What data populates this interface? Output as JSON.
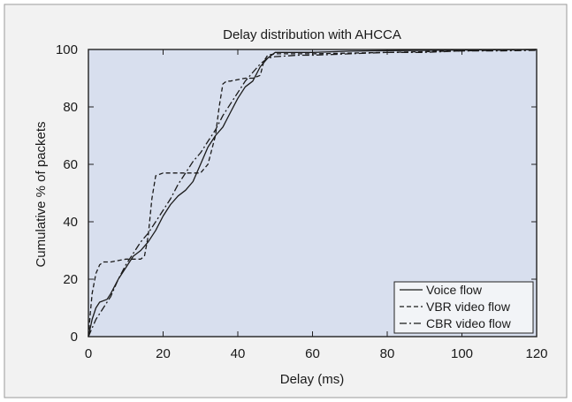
{
  "chart_data": {
    "type": "line",
    "title": "Delay distribution with AHCCA",
    "xlabel": "Delay (ms)",
    "ylabel": "Cumulative % of packets",
    "xlim": [
      0,
      120
    ],
    "ylim": [
      0,
      100
    ],
    "xticks": [
      "0",
      "20",
      "40",
      "60",
      "80",
      "100",
      "120"
    ],
    "yticks": [
      "0",
      "20",
      "40",
      "60",
      "80",
      "100"
    ],
    "grid": false,
    "legend_position": "bottom-right",
    "colors": {
      "panel": "#f2f2f2",
      "plot_area": "#d8dfee",
      "line": "#1a1a1a",
      "frame": "#222222"
    },
    "series": [
      {
        "name": "Voice flow",
        "style": "solid",
        "x": [
          0,
          1,
          2,
          3,
          5,
          6,
          8,
          10,
          12,
          14,
          16,
          18,
          20,
          22,
          24,
          26,
          28,
          30,
          32,
          34,
          36,
          38,
          40,
          42,
          44,
          46,
          48,
          50,
          52,
          56,
          60,
          70,
          80,
          100,
          120
        ],
        "y": [
          0,
          6,
          10,
          12,
          13,
          15,
          20,
          24,
          28,
          30,
          33,
          37,
          42,
          46,
          49,
          51,
          54,
          60,
          66,
          70,
          73,
          78,
          83,
          87,
          89,
          94,
          97,
          99,
          99,
          99,
          99,
          99.4,
          99.6,
          99.8,
          100
        ]
      },
      {
        "name": "VBR video flow",
        "style": "dashed",
        "x": [
          0,
          0.5,
          1,
          2,
          3,
          4,
          6,
          8,
          10,
          12,
          14,
          15,
          16,
          17,
          18,
          20,
          24,
          28,
          30,
          32,
          34,
          35,
          36,
          37,
          38,
          42,
          44,
          46,
          47,
          48,
          50,
          60,
          80,
          100,
          120
        ],
        "y": [
          0,
          8,
          15,
          22,
          25,
          26,
          26,
          26.5,
          27,
          27,
          27,
          28,
          35,
          48,
          56,
          57,
          57,
          57,
          57,
          60,
          70,
          80,
          88,
          89,
          89,
          90,
          90,
          91,
          96,
          98,
          98.5,
          98.5,
          99,
          99.5,
          100
        ]
      },
      {
        "name": "CBR video flow",
        "style": "dashdot",
        "x": [
          0,
          1,
          2,
          3,
          4,
          5,
          6,
          8,
          10,
          12,
          14,
          16,
          18,
          20,
          22,
          24,
          26,
          28,
          30,
          32,
          34,
          36,
          38,
          40,
          42,
          44,
          46,
          48,
          50,
          56,
          60,
          70,
          80,
          90,
          100,
          110,
          120
        ],
        "y": [
          0,
          3,
          6,
          8,
          10,
          12,
          14,
          20,
          25,
          29,
          33,
          36,
          40,
          44,
          48,
          53,
          57,
          61,
          64,
          68,
          72,
          77,
          81,
          85,
          89,
          92,
          95,
          97,
          97.5,
          98,
          98,
          98.5,
          99,
          99,
          99.5,
          99.5,
          99.7
        ]
      }
    ]
  }
}
